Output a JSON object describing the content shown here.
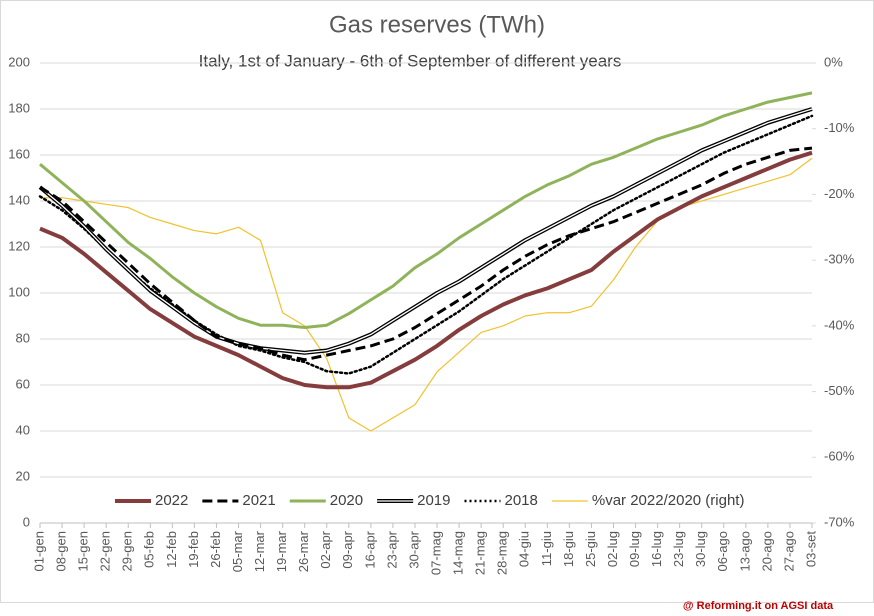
{
  "chart_data": {
    "type": "line",
    "title": "Gas reserves (TWh)",
    "subtitle": "Italy, 1st of January - 6th of September of different years",
    "footer": "@ Reforming.it on AGSI data",
    "categories": [
      "01-gen",
      "08-gen",
      "15-gen",
      "22-gen",
      "29-gen",
      "05-feb",
      "12-feb",
      "19-feb",
      "26-feb",
      "05-mar",
      "12-mar",
      "19-mar",
      "26-mar",
      "02-apr",
      "09-apr",
      "16-apr",
      "23-apr",
      "30-apr",
      "07-mag",
      "14-mag",
      "21-mag",
      "28-mag",
      "04-giu",
      "11-giu",
      "18-giu",
      "25-giu",
      "02-lug",
      "09-lug",
      "16-lug",
      "23-lug",
      "30-lug",
      "06-ago",
      "13-ago",
      "20-ago",
      "27-ago",
      "03-set"
    ],
    "series": [
      {
        "name": "2022",
        "color": "#843c3c",
        "style": "solid",
        "width": 4,
        "values": [
          128,
          124,
          117,
          109,
          101,
          93,
          87,
          81,
          77,
          73,
          68,
          63,
          60,
          59,
          59,
          61,
          66,
          71,
          77,
          84,
          90,
          95,
          99,
          102,
          106,
          110,
          118,
          125,
          132,
          137,
          142,
          146,
          150,
          154,
          158,
          161
        ]
      },
      {
        "name": "2021",
        "color": "#000000",
        "style": "dashed",
        "width": 3,
        "values": [
          146,
          140,
          131,
          122,
          113,
          104,
          96,
          88,
          81,
          78,
          76,
          73,
          71,
          73,
          75,
          77,
          80,
          85,
          91,
          97,
          103,
          110,
          116,
          121,
          125,
          128,
          131,
          135,
          139,
          143,
          147,
          152,
          156,
          159,
          162,
          163
        ]
      },
      {
        "name": "2020",
        "color": "#8fb35a",
        "style": "solid",
        "width": 3,
        "values": [
          156,
          148,
          140,
          131,
          122,
          115,
          107,
          100,
          94,
          89,
          86,
          86,
          85,
          86,
          91,
          97,
          103,
          111,
          117,
          124,
          130,
          136,
          142,
          147,
          151,
          156,
          159,
          163,
          167,
          170,
          173,
          177,
          180,
          183,
          185,
          187
        ]
      },
      {
        "name": "2019",
        "color": "#000000",
        "style": "double",
        "width": 4,
        "values": [
          146,
          138,
          129,
          119,
          110,
          101,
          94,
          87,
          81,
          78,
          76,
          75,
          74,
          75,
          78,
          82,
          88,
          94,
          100,
          105,
          111,
          117,
          123,
          128,
          133,
          138,
          142,
          147,
          152,
          157,
          162,
          166,
          170,
          174,
          177,
          180
        ]
      },
      {
        "name": "2018",
        "color": "#000000",
        "style": "dotted",
        "width": 2.5,
        "values": [
          142,
          136,
          128,
          119,
          110,
          102,
          95,
          88,
          82,
          77,
          75,
          72,
          70,
          66,
          65,
          68,
          74,
          80,
          86,
          92,
          99,
          106,
          112,
          118,
          124,
          130,
          136,
          141,
          146,
          151,
          156,
          161,
          165,
          169,
          173,
          177
        ]
      },
      {
        "name": "%var 2022/2020 (right)",
        "color": "#f2c12e",
        "style": "solid",
        "width": 1.2,
        "axis": "y2",
        "values": [
          -20.5,
          -20.5,
          -21,
          -21.5,
          -22,
          -23.5,
          -24.5,
          -25.5,
          -26,
          -25,
          -27,
          -38,
          -40,
          -45,
          -54,
          -56,
          -54,
          -52,
          -47,
          -44,
          -41,
          -40,
          -38.5,
          -38,
          -38,
          -37,
          -33,
          -28,
          -24,
          -22,
          -21,
          -20,
          -19,
          -18,
          -17,
          -14.5
        ]
      }
    ],
    "ylim": [
      0,
      200
    ],
    "yticks": [
      0,
      20,
      40,
      60,
      80,
      100,
      120,
      140,
      160,
      180,
      200
    ],
    "y2lim": [
      -70,
      0
    ],
    "y2ticks": [
      {
        "value": -70,
        "label": "-70%"
      },
      {
        "value": -60,
        "label": "-60%"
      },
      {
        "value": -50,
        "label": "-50%"
      },
      {
        "value": -40,
        "label": "-40%"
      },
      {
        "value": -30,
        "label": "-30%"
      },
      {
        "value": -20,
        "label": "-20%"
      },
      {
        "value": -10,
        "label": "-10%"
      },
      {
        "value": 0,
        "label": "0%"
      }
    ],
    "grid": true
  }
}
